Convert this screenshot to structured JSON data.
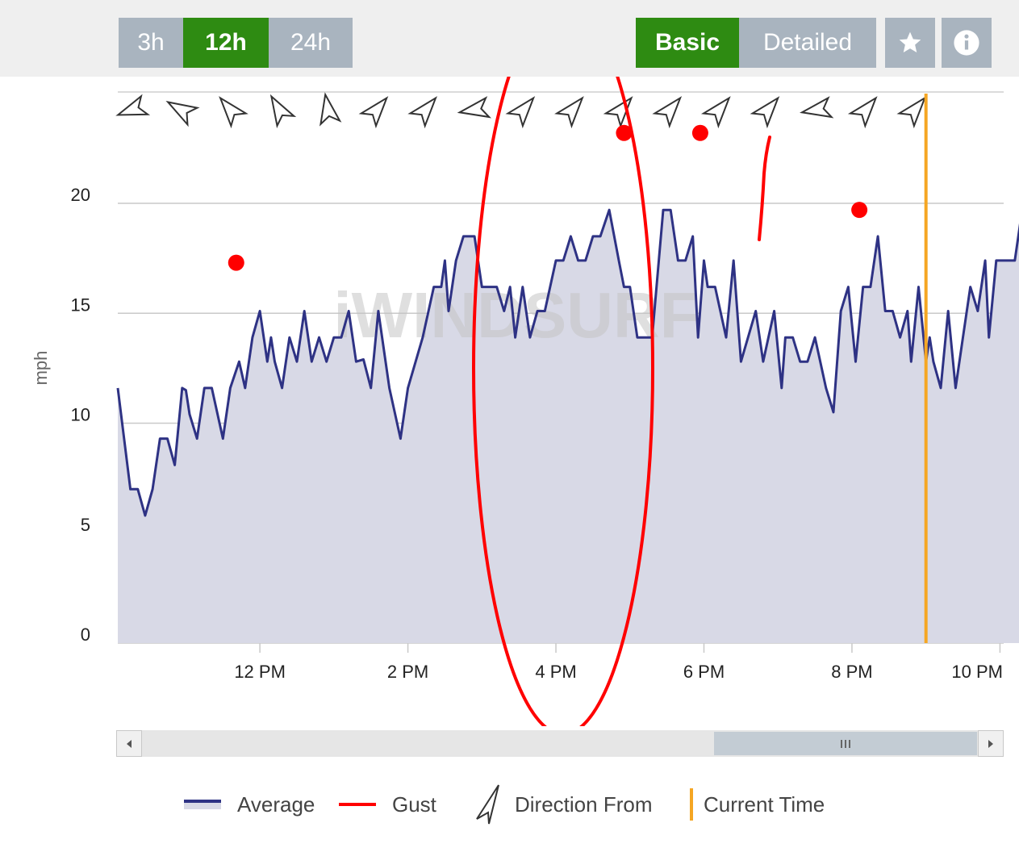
{
  "toolbar": {
    "ranges": [
      "3h",
      "12h",
      "24h"
    ],
    "active_range": "12h",
    "modes": [
      "Basic",
      "Detailed"
    ],
    "active_mode": "Basic",
    "favorite_icon": "star-icon",
    "info_icon": "info-icon",
    "active_color": "#2e8b12",
    "inactive_color": "#a9b4bf"
  },
  "watermark": "iWINDSURF",
  "chart_data": {
    "type": "area",
    "ylabel": "mph",
    "ylim": [
      0,
      24
    ],
    "yticks": [
      0,
      5,
      10,
      15,
      20
    ],
    "xtick_labels": [
      "12 PM",
      "2 PM",
      "4 PM",
      "6 PM",
      "8 PM",
      "10 PM"
    ],
    "xtick_hours": [
      12,
      14,
      16,
      18,
      20,
      22
    ],
    "xlim_hours": [
      10.08,
      22.05
    ],
    "current_time_hour": 21.0,
    "series": [
      {
        "name": "Average",
        "color": "#2e3284",
        "fill": "#d8d9e6",
        "points": [
          [
            10.08,
            11.6
          ],
          [
            10.25,
            7.0
          ],
          [
            10.35,
            7.0
          ],
          [
            10.45,
            5.8
          ],
          [
            10.55,
            7.0
          ],
          [
            10.65,
            9.3
          ],
          [
            10.75,
            9.3
          ],
          [
            10.85,
            8.1
          ],
          [
            10.95,
            11.6
          ],
          [
            11.0,
            11.5
          ],
          [
            11.05,
            10.4
          ],
          [
            11.15,
            9.3
          ],
          [
            11.25,
            11.6
          ],
          [
            11.35,
            11.6
          ],
          [
            11.5,
            9.3
          ],
          [
            11.6,
            11.6
          ],
          [
            11.72,
            12.8
          ],
          [
            11.8,
            11.6
          ],
          [
            11.9,
            13.9
          ],
          [
            12.0,
            15.1
          ],
          [
            12.1,
            12.8
          ],
          [
            12.15,
            13.9
          ],
          [
            12.2,
            12.8
          ],
          [
            12.3,
            11.6
          ],
          [
            12.4,
            13.9
          ],
          [
            12.5,
            12.8
          ],
          [
            12.6,
            15.1
          ],
          [
            12.7,
            12.8
          ],
          [
            12.8,
            13.9
          ],
          [
            12.9,
            12.8
          ],
          [
            13.0,
            13.9
          ],
          [
            13.1,
            13.9
          ],
          [
            13.2,
            15.1
          ],
          [
            13.3,
            12.8
          ],
          [
            13.4,
            12.9
          ],
          [
            13.5,
            11.6
          ],
          [
            13.6,
            15.1
          ],
          [
            13.75,
            11.6
          ],
          [
            13.9,
            9.3
          ],
          [
            14.0,
            11.6
          ],
          [
            14.2,
            13.9
          ],
          [
            14.35,
            16.2
          ],
          [
            14.45,
            16.2
          ],
          [
            14.5,
            17.4
          ],
          [
            14.55,
            15.1
          ],
          [
            14.65,
            17.4
          ],
          [
            14.75,
            18.5
          ],
          [
            14.9,
            18.5
          ],
          [
            15.0,
            16.2
          ],
          [
            15.2,
            16.2
          ],
          [
            15.3,
            15.1
          ],
          [
            15.38,
            16.2
          ],
          [
            15.45,
            13.9
          ],
          [
            15.55,
            16.2
          ],
          [
            15.65,
            13.9
          ],
          [
            15.75,
            15.1
          ],
          [
            15.85,
            15.1
          ],
          [
            16.0,
            17.4
          ],
          [
            16.1,
            17.4
          ],
          [
            16.2,
            18.5
          ],
          [
            16.3,
            17.4
          ],
          [
            16.4,
            17.4
          ],
          [
            16.5,
            18.5
          ],
          [
            16.6,
            18.5
          ],
          [
            16.72,
            19.7
          ],
          [
            16.85,
            17.4
          ],
          [
            16.92,
            16.2
          ],
          [
            17.0,
            16.2
          ],
          [
            17.1,
            13.9
          ],
          [
            17.3,
            13.9
          ],
          [
            17.45,
            19.7
          ],
          [
            17.55,
            19.7
          ],
          [
            17.65,
            17.4
          ],
          [
            17.75,
            17.4
          ],
          [
            17.85,
            18.5
          ],
          [
            17.92,
            13.9
          ],
          [
            18.0,
            17.4
          ],
          [
            18.05,
            16.2
          ],
          [
            18.15,
            16.2
          ],
          [
            18.3,
            13.9
          ],
          [
            18.4,
            17.4
          ],
          [
            18.5,
            12.8
          ],
          [
            18.7,
            15.1
          ],
          [
            18.8,
            12.8
          ],
          [
            18.95,
            15.1
          ],
          [
            19.05,
            11.6
          ],
          [
            19.1,
            13.9
          ],
          [
            19.2,
            13.9
          ],
          [
            19.3,
            12.8
          ],
          [
            19.4,
            12.8
          ],
          [
            19.5,
            13.9
          ],
          [
            19.65,
            11.6
          ],
          [
            19.75,
            10.5
          ],
          [
            19.85,
            15.1
          ],
          [
            19.95,
            16.2
          ],
          [
            20.05,
            12.8
          ],
          [
            20.15,
            16.2
          ],
          [
            20.25,
            16.2
          ],
          [
            20.35,
            18.5
          ],
          [
            20.45,
            15.1
          ],
          [
            20.55,
            15.1
          ],
          [
            20.65,
            13.9
          ],
          [
            20.75,
            15.1
          ],
          [
            20.8,
            12.8
          ],
          [
            20.9,
            16.2
          ],
          [
            21.0,
            12.8
          ],
          [
            21.05,
            13.9
          ],
          [
            21.1,
            12.8
          ],
          [
            21.2,
            11.6
          ],
          [
            21.3,
            15.1
          ],
          [
            21.4,
            11.6
          ],
          [
            21.5,
            13.9
          ],
          [
            21.6,
            16.2
          ],
          [
            21.7,
            15.1
          ],
          [
            21.8,
            17.4
          ],
          [
            21.85,
            13.9
          ],
          [
            21.95,
            17.4
          ],
          [
            22.1,
            17.4
          ],
          [
            22.2,
            17.4
          ],
          [
            22.3,
            19.7
          ],
          [
            22.4,
            16.2
          ],
          [
            22.48,
            19.7
          ]
        ]
      }
    ],
    "direction_from_deg": [
      250,
      300,
      320,
      330,
      350,
      40,
      40,
      260,
      40,
      40,
      40,
      40,
      40,
      40,
      260,
      40,
      40
    ]
  },
  "annotations": {
    "gust_dots": [
      [
        11.68,
        17.3
      ],
      [
        16.92,
        23.2
      ],
      [
        17.95,
        23.2
      ],
      [
        20.1,
        19.7
      ]
    ],
    "ellipse_color": "#ff0000"
  },
  "scrollbar": {
    "grip_icon": "grip-icon"
  },
  "legend": {
    "average": "Average",
    "gust": "Gust",
    "direction": "Direction From",
    "current_time": "Current Time",
    "average_color": "#2e3284",
    "gust_color": "#ff0000",
    "current_time_color": "#f5a623"
  }
}
